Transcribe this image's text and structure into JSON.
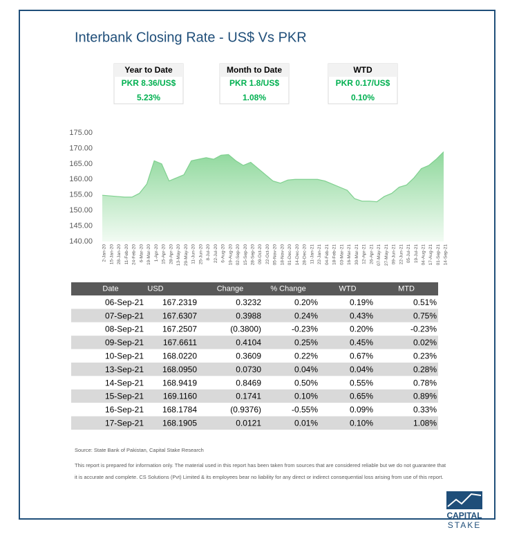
{
  "title": "Interbank Closing Rate - US$ Vs PKR",
  "summary_boxes": [
    {
      "label": "Year to Date",
      "lines": [
        "PKR 8.36/US$",
        "5.23%"
      ]
    },
    {
      "label": "Month to Date",
      "lines": [
        "PKR 1.8/US$",
        "1.08%"
      ]
    },
    {
      "label": "WTD",
      "lines": [
        "PKR 0.17/US$",
        "0.10%"
      ]
    }
  ],
  "chart_data": {
    "type": "area",
    "color": "#7fd08f",
    "grid": false,
    "x": [
      "2-Jan-20",
      "15-Jan-20",
      "28-Jan-20",
      "11-Feb-20",
      "24-Feb-20",
      "6-Mar-20",
      "19-Mar-20",
      "1-Apr-20",
      "15-Apr-20",
      "28-Apr-20",
      "13-May-20",
      "29-May-20",
      "11-Jun-20",
      "25-Jun-20",
      "8-Jul-20",
      "22-Jul-20",
      "6-Aug-20",
      "19-Aug-20",
      "02-Sep-20",
      "15-Sep-20",
      "28-Sep-20",
      "09-Oct-20",
      "22-Oct-20",
      "05-Nov-20",
      "18-Nov-20",
      "01-Dec-20",
      "14-Dec-20",
      "28-Dec-20",
      "11-Jan-21",
      "22-Jan-21",
      "04-Feb-21",
      "18-Feb-21",
      "03-Mar-21",
      "16-Mar-21",
      "30-Mar-21",
      "12-Apr-21",
      "26-Apr-21",
      "07-May-21",
      "27-May-21",
      "09-Jun-21",
      "22-Jun-21",
      "05-Jul-21",
      "19-Jul-21",
      "04-Aug-21",
      "17-Aug-21",
      "01-Sep-21",
      "14-Sep-21"
    ],
    "values": [
      154.9,
      154.7,
      154.5,
      154.3,
      154.3,
      155.5,
      158.5,
      166,
      165,
      159.5,
      160.5,
      161.5,
      166,
      166.5,
      167,
      166.5,
      167.8,
      168,
      166,
      164.5,
      165.5,
      163.5,
      161.5,
      159.5,
      158.8,
      159.8,
      160,
      160,
      160,
      160,
      159.5,
      158.5,
      157.5,
      156.5,
      153.8,
      153,
      153,
      152.8,
      154.5,
      155.5,
      157.5,
      158.2,
      160.5,
      163.5,
      164.5,
      166.5,
      168.9
    ],
    "ylim": [
      140,
      175
    ],
    "yticks": [
      {
        "value": 140,
        "label": "140.00"
      },
      {
        "value": 145,
        "label": "145.00"
      },
      {
        "value": 150,
        "label": "150.00"
      },
      {
        "value": 155,
        "label": "155.00"
      },
      {
        "value": 160,
        "label": "160.00"
      },
      {
        "value": 165,
        "label": "165.00"
      },
      {
        "value": 170,
        "label": "170.00"
      },
      {
        "value": 175,
        "label": "175.00"
      }
    ]
  },
  "table": {
    "header": [
      "Date",
      "USD",
      "Change",
      "% Change",
      "WTD",
      "MTD"
    ],
    "rows": [
      [
        "06-Sep-21",
        "167.2319",
        "0.3232",
        "0.20%",
        "0.19%",
        "0.51%"
      ],
      [
        "07-Sep-21",
        "167.6307",
        "0.3988",
        "0.24%",
        "0.43%",
        "0.75%"
      ],
      [
        "08-Sep-21",
        "167.2507",
        "(0.3800)",
        "-0.23%",
        "0.20%",
        "-0.23%"
      ],
      [
        "09-Sep-21",
        "167.6611",
        "0.4104",
        "0.25%",
        "0.45%",
        "0.02%"
      ],
      [
        "10-Sep-21",
        "168.0220",
        "0.3609",
        "0.22%",
        "0.67%",
        "0.23%"
      ],
      [
        "13-Sep-21",
        "168.0950",
        "0.0730",
        "0.04%",
        "0.04%",
        "0.28%"
      ],
      [
        "14-Sep-21",
        "168.9419",
        "0.8469",
        "0.50%",
        "0.55%",
        "0.78%"
      ],
      [
        "15-Sep-21",
        "169.1160",
        "0.1741",
        "0.10%",
        "0.65%",
        "0.89%"
      ],
      [
        "16-Sep-21",
        "168.1784",
        "(0.9376)",
        "-0.55%",
        "0.09%",
        "0.33%"
      ],
      [
        "17-Sep-21",
        "168.1905",
        "0.0121",
        "0.01%",
        "0.10%",
        "1.08%"
      ]
    ]
  },
  "source": "Source: State Bank of Pakistan, Capital Stake Research",
  "disclaimer": [
    "This report is prepared for information only. The material used in this report has been taken from sources that are considered reliable but we do not guarantee that",
    "it is accurate and complete. CS Solutions (Pvt) Limited & its employees bear no liability for any direct or indirect consequential loss arising from use of this report."
  ],
  "logo": [
    "CAPITAL",
    "STAKE"
  ]
}
